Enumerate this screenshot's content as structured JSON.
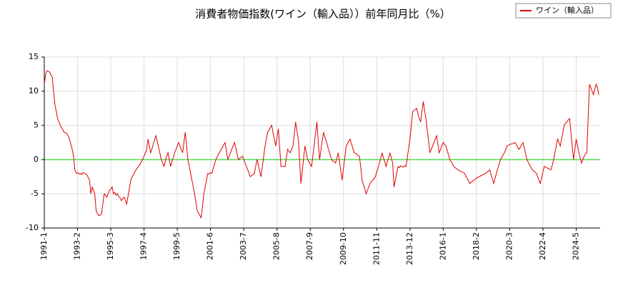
{
  "chart_data": {
    "type": "line",
    "title": "消費者物価指数(ワイン（輸入品））前年同月比（%）",
    "categories": [
      "1991-1",
      null,
      null,
      null,
      null,
      null,
      null,
      null,
      null,
      null,
      null,
      null,
      null,
      null,
      null,
      null,
      null,
      null,
      null,
      null,
      null,
      null,
      null,
      null,
      null,
      "1993-2",
      null,
      null,
      null,
      null,
      null,
      null,
      null,
      null,
      null,
      null,
      null,
      null,
      null,
      null,
      null,
      null,
      null,
      null,
      null,
      null,
      null,
      null,
      null,
      null,
      "1995-3",
      null,
      null,
      null,
      null,
      null,
      null,
      null,
      null,
      null,
      null,
      null,
      null,
      null,
      null,
      null,
      null,
      null,
      null,
      null,
      null,
      null,
      null,
      null,
      null,
      "1997-4",
      null,
      null,
      null,
      null,
      null,
      null,
      null,
      null,
      null,
      null,
      null,
      null,
      null,
      null,
      null,
      null,
      null,
      null,
      null,
      null,
      null,
      null,
      null,
      null,
      "1999-5",
      null,
      null,
      null,
      null,
      null,
      null,
      null,
      null,
      null,
      null,
      null,
      null,
      null,
      null,
      null,
      null,
      null,
      null,
      null,
      null,
      null,
      null,
      null,
      null,
      "2001-6",
      null,
      null,
      null,
      null,
      null,
      null,
      null,
      null,
      null,
      null,
      null,
      null,
      null,
      null,
      null,
      null,
      null,
      null,
      null,
      null,
      null,
      null,
      null,
      null,
      "2003-7",
      null,
      null,
      null,
      null,
      null,
      null,
      null,
      null,
      null,
      null,
      null,
      null,
      null,
      null,
      null,
      null,
      null,
      null,
      null,
      null,
      null,
      null,
      null,
      null,
      "2005-8",
      null,
      null,
      null,
      null,
      null,
      null,
      null,
      null,
      null,
      null,
      null,
      null,
      null,
      null,
      null,
      null,
      null,
      null,
      null,
      null,
      null,
      null,
      null,
      null,
      "2007-9",
      null,
      null,
      null,
      null,
      null,
      null,
      null,
      null,
      null,
      null,
      null,
      null,
      null,
      null,
      null,
      null,
      null,
      null,
      null,
      null,
      null,
      null,
      null,
      null,
      "2009-10",
      null,
      null,
      null,
      null,
      null,
      null,
      null,
      null,
      null,
      null,
      null,
      null,
      null,
      null,
      null,
      null,
      null,
      null,
      null,
      null,
      null,
      null,
      null,
      null,
      "2011-11",
      null,
      null,
      null,
      null,
      null,
      null,
      null,
      null,
      null,
      null,
      null,
      null,
      null,
      null,
      null,
      null,
      null,
      null,
      null,
      null,
      null,
      null,
      null,
      null,
      "2013-12",
      null,
      null,
      null,
      null,
      null,
      null,
      null,
      null,
      null,
      null,
      null,
      null,
      null,
      null,
      null,
      null,
      null,
      null,
      null,
      null,
      null,
      null,
      null,
      null,
      "2016-1",
      null,
      null,
      null,
      null,
      null,
      null,
      null,
      null,
      null,
      null,
      null,
      null,
      null,
      null,
      null,
      null,
      null,
      null,
      null,
      null,
      null,
      null,
      null,
      null,
      "2018-2",
      null,
      null,
      null,
      null,
      null,
      null,
      null,
      null,
      null,
      null,
      null,
      null,
      null,
      null,
      null,
      null,
      null,
      null,
      null,
      null,
      null,
      null,
      null,
      null,
      "2020-3",
      null,
      null,
      null,
      null,
      null,
      null,
      null,
      null,
      null,
      null,
      null,
      null,
      null,
      null,
      null,
      null,
      null,
      null,
      null,
      null,
      null,
      null,
      null,
      null,
      "2022-4",
      null,
      null,
      null,
      null,
      null,
      null,
      null,
      null,
      null,
      null,
      null,
      null,
      null,
      null,
      null,
      null,
      null,
      null,
      null,
      null,
      null,
      null,
      null,
      null,
      "2024-5",
      null,
      null,
      null,
      null,
      null,
      null,
      null,
      null,
      null,
      null,
      null,
      null,
      null,
      null,
      null,
      null,
      null
    ],
    "series": [
      {
        "name": "ワイン（輸入品）",
        "color": "#e00000",
        "values": [
          11,
          12.5,
          13,
          12.9,
          12.8,
          12.4,
          12,
          10,
          8,
          7,
          6,
          5.5,
          5,
          4.7,
          4.3,
          4,
          3.9,
          3.8,
          3.4,
          3,
          2.2,
          1.5,
          0.5,
          -1.5,
          -2,
          -1.9,
          -2.1,
          -2,
          -2.2,
          -1.9,
          -2,
          -2.1,
          -2.2,
          -2.6,
          -3,
          -5,
          -4,
          -4.5,
          -5,
          -7.5,
          -7.9,
          -8.2,
          -8.1,
          -8,
          -6.5,
          -5,
          -5.2,
          -5.5,
          -5,
          -4.5,
          -4.3,
          -4,
          -5,
          -4.8,
          -5.2,
          -5,
          -5.4,
          -5.6,
          -6,
          -5.7,
          -5.5,
          -6,
          -6.5,
          -5.3,
          -4.2,
          -3,
          -2.6,
          -2.2,
          -1.8,
          -1.5,
          -1.2,
          -1,
          -0.7,
          -0.3,
          0,
          0.5,
          1,
          1.5,
          3,
          2,
          1,
          1.6,
          2.3,
          2.9,
          3.5,
          2.6,
          1.7,
          0.9,
          0,
          -0.5,
          -1,
          -0.2,
          0.5,
          1,
          0,
          -1,
          -0.3,
          0.3,
          1,
          1.5,
          2,
          2.5,
          2,
          1.5,
          1,
          2.5,
          4,
          2,
          0,
          -1,
          -2,
          -3,
          -4,
          -5,
          -6.2,
          -7.5,
          -7.8,
          -8.2,
          -8.5,
          -6.8,
          -5,
          -4,
          -3,
          -2,
          -2.1,
          -1.9,
          -2,
          -1.3,
          -0.7,
          0,
          0.4,
          0.8,
          1.1,
          1.5,
          1.8,
          2.2,
          2.5,
          1.2,
          0,
          0.5,
          1,
          1.5,
          2,
          2.5,
          1.7,
          0.8,
          0,
          0.2,
          0.3,
          0.5,
          0,
          -0.5,
          -1,
          -1.5,
          -2,
          -2.5,
          -2.3,
          -2.2,
          -2,
          -1,
          0,
          -0.8,
          -1.7,
          -2.5,
          -1,
          0.5,
          2,
          3,
          4,
          4.3,
          4.7,
          5,
          4,
          3,
          2,
          3.2,
          4.5,
          1.8,
          -1,
          -1,
          -1,
          -1,
          0.2,
          1.5,
          1.2,
          1,
          1.5,
          2,
          3.7,
          5.5,
          4.2,
          3,
          -0.2,
          -3.5,
          -1.7,
          0.1,
          2,
          1,
          0,
          -0.3,
          -0.7,
          -1,
          0.6,
          2.2,
          3.9,
          5.5,
          2.7,
          0,
          1.3,
          2.7,
          4,
          3.3,
          2.7,
          2,
          1.3,
          0.7,
          0,
          -0.2,
          -0.3,
          -0.5,
          0.2,
          1,
          -0.3,
          -1.7,
          -3,
          -1.3,
          0.3,
          2,
          2.3,
          2.7,
          3,
          2.3,
          1.7,
          1,
          0.9,
          0.8,
          0.6,
          0.5,
          -1.2,
          -3,
          -3.7,
          -4.3,
          -5,
          -4.5,
          -4,
          -3.5,
          -3.2,
          -3,
          -2.8,
          -2.5,
          -1.8,
          -1.2,
          -0.5,
          0.2,
          1,
          0.3,
          -0.3,
          -1,
          -0.3,
          0.3,
          1,
          0.2,
          -0.5,
          -4,
          -3,
          -2,
          -1,
          -1.2,
          -0.9,
          -1,
          -1.1,
          -0.9,
          -1,
          0.3,
          1.7,
          3,
          5,
          7,
          7.2,
          7.3,
          7.5,
          6.7,
          6,
          5.5,
          7,
          8.5,
          7.2,
          6,
          4.3,
          2.7,
          1,
          1.5,
          2,
          2.5,
          3,
          3.5,
          2.2,
          1,
          1.5,
          2,
          2.5,
          2.2,
          2,
          1.3,
          0.7,
          0,
          -0.3,
          -0.7,
          -1,
          -1.2,
          -1.3,
          -1.5,
          -1.6,
          -1.7,
          -1.8,
          -1.9,
          -2,
          -2.4,
          -2.8,
          -3.1,
          -3.5,
          -3.3,
          -3.2,
          -3,
          -2.9,
          -2.7,
          -2.6,
          -2.5,
          -2.4,
          -2.3,
          -2.2,
          -2.1,
          -2,
          -1.8,
          -1.7,
          -1.5,
          -2.2,
          -2.8,
          -3.5,
          -2.7,
          -2,
          -1.3,
          -0.7,
          0,
          0.3,
          0.7,
          1,
          1.5,
          2,
          2.1,
          2.2,
          2.3,
          2.3,
          2.4,
          2.5,
          2.2,
          1.8,
          1.5,
          1.8,
          2.2,
          2.5,
          1.7,
          0.8,
          0,
          -0.4,
          -0.8,
          -1.1,
          -1.5,
          -1.7,
          -1.8,
          -2,
          -2.5,
          -3,
          -3.5,
          -2.7,
          -1.8,
          -1,
          -1.1,
          -1.2,
          -1.3,
          -1.4,
          -1.5,
          -0.8,
          0,
          1,
          2,
          3,
          2.5,
          2,
          3,
          4,
          5,
          5.3,
          5.5,
          5.8,
          6,
          4,
          2,
          0,
          1.5,
          3,
          2,
          1,
          0.3,
          -0.5,
          0,
          0.5,
          0.8,
          1,
          6,
          11,
          10.5,
          10,
          9.5,
          10.3,
          11,
          10.5,
          9.5
        ]
      }
    ],
    "ylim": [
      -10,
      15
    ],
    "yticks": [
      -10,
      -5,
      0,
      5,
      10,
      15
    ],
    "grid": true,
    "zero_line_color": "#00cc00",
    "legend": "upper right"
  }
}
